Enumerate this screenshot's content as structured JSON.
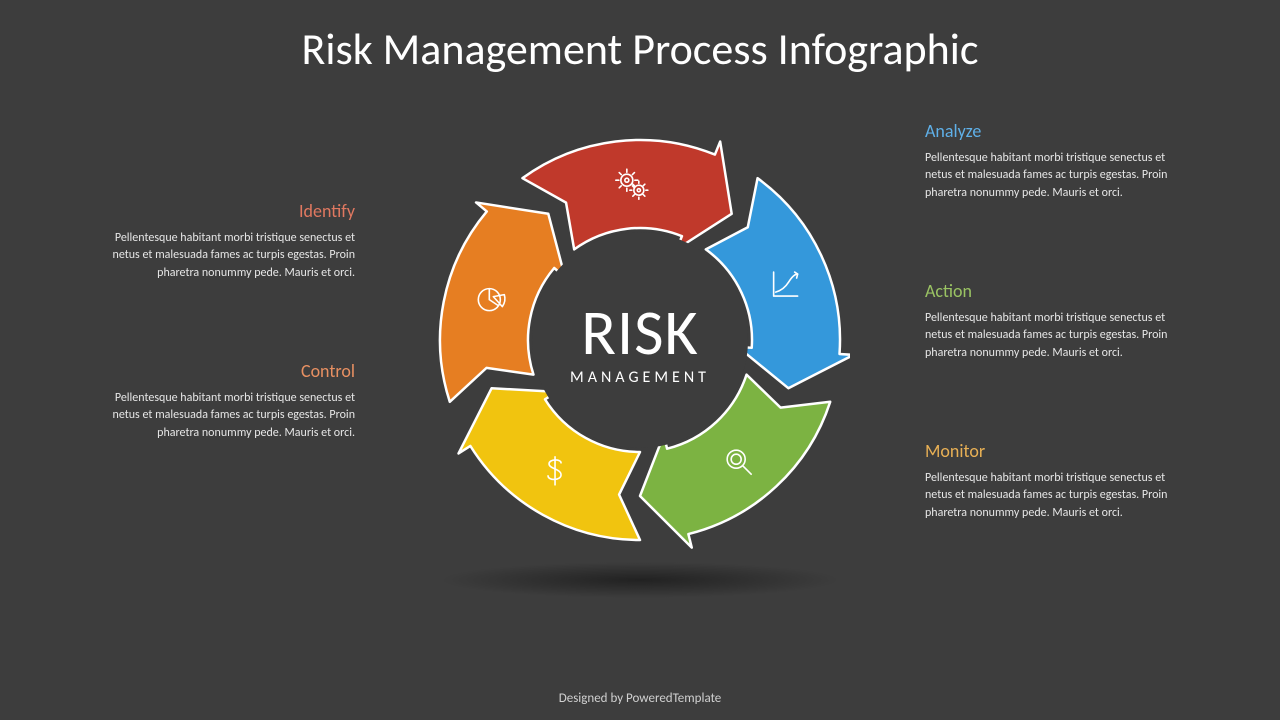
{
  "title": "Risk Management Process Infographic",
  "center": {
    "line1": "RISK",
    "line2": "MANAGEMENT"
  },
  "footer": "Designed by PoweredTemplate",
  "colors": {
    "background": "#3d3d3d",
    "title": "#ffffff",
    "body_text": "#e6e6e6",
    "center_fill": "#3d3d3d"
  },
  "segments": [
    {
      "key": "identify",
      "label": "Identify",
      "color": "#c0392b",
      "heading_color": "#e07860",
      "icon": "gears",
      "angle_start": -126,
      "angle_end": -54,
      "side": "left",
      "body": "Pellentesque habitant morbi tristique senectus et netus et malesuada fames ac turpis egestas. Proin pharetra nonummy pede. Mauris et orci."
    },
    {
      "key": "analyze",
      "label": "Analyze",
      "color": "#3498db",
      "heading_color": "#5fb0e8",
      "icon": "chart",
      "angle_start": -54,
      "angle_end": 18,
      "side": "right",
      "body": "Pellentesque habitant morbi tristique senectus et netus et malesuada fames ac turpis egestas. Proin pharetra nonummy pede. Mauris et orci."
    },
    {
      "key": "action",
      "label": "Action",
      "color": "#7cb342",
      "heading_color": "#9ac363",
      "icon": "magnify",
      "angle_start": 18,
      "angle_end": 90,
      "side": "right",
      "body": "Pellentesque habitant morbi tristique senectus et netus et malesuada fames ac turpis egestas. Proin pharetra nonummy pede. Mauris et orci."
    },
    {
      "key": "monitor",
      "label": "Monitor",
      "color": "#f1c40f",
      "heading_color": "#e8b055",
      "icon": "dollar",
      "angle_start": 90,
      "angle_end": 162,
      "side": "right",
      "body": "Pellentesque habitant morbi tristique senectus et netus et malesuada fames ac turpis egestas. Proin pharetra nonummy pede. Mauris et orci."
    },
    {
      "key": "control",
      "label": "Control",
      "color": "#e67e22",
      "heading_color": "#e89062",
      "icon": "pie",
      "angle_start": 162,
      "angle_end": 234,
      "side": "left",
      "body": "Pellentesque habitant morbi tristique senectus et netus et malesuada fames ac turpis egestas. Proin pharetra nonummy pede. Mauris et orci."
    }
  ],
  "wheel": {
    "outer_radius": 200,
    "inner_radius": 112,
    "arrow_head_len_deg": 14,
    "arrow_head_overhang": 14,
    "stroke": "#ffffff",
    "stroke_width": 2.5,
    "icon_radius": 156,
    "icon_color": "#ffffff",
    "icon_stroke_width": 1.6
  },
  "layout": {
    "left_blocks_top": [
      90,
      250
    ],
    "right_blocks_top": [
      10,
      170,
      330
    ]
  }
}
